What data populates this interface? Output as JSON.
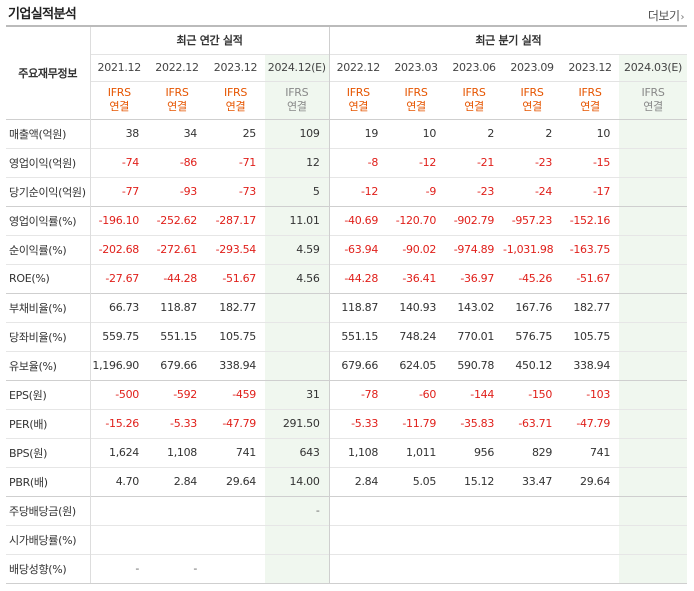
{
  "title": "기업실적분석",
  "more_label": "더보기",
  "header": {
    "row_header": "주요재무정보",
    "annual_group": "최근 연간 실적",
    "quarter_group": "최근 분기 실적",
    "periods": [
      "2021.12",
      "2022.12",
      "2023.12",
      "2024.12(E)",
      "2022.12",
      "2023.03",
      "2023.06",
      "2023.09",
      "2023.12",
      "2024.03(E)"
    ],
    "ifrs_top": "IFRS",
    "ifrs_bottom": "연결"
  },
  "rows": [
    {
      "label": "매출액(억원)",
      "values": [
        "38",
        "34",
        "25",
        "109",
        "19",
        "10",
        "2",
        "2",
        "10",
        ""
      ]
    },
    {
      "label": "영업이익(억원)",
      "values": [
        "-74",
        "-86",
        "-71",
        "12",
        "-8",
        "-12",
        "-21",
        "-23",
        "-15",
        ""
      ]
    },
    {
      "label": "당기순이익(억원)",
      "values": [
        "-77",
        "-93",
        "-73",
        "5",
        "-12",
        "-9",
        "-23",
        "-24",
        "-17",
        ""
      ]
    },
    {
      "label": "영업이익률(%)",
      "values": [
        "-196.10",
        "-252.62",
        "-287.17",
        "11.01",
        "-40.69",
        "-120.70",
        "-902.79",
        "-957.23",
        "-152.16",
        ""
      ]
    },
    {
      "label": "순이익률(%)",
      "values": [
        "-202.68",
        "-272.61",
        "-293.54",
        "4.59",
        "-63.94",
        "-90.02",
        "-974.89",
        "-1,031.98",
        "-163.75",
        ""
      ]
    },
    {
      "label": "ROE(%)",
      "values": [
        "-27.67",
        "-44.28",
        "-51.67",
        "4.56",
        "-44.28",
        "-36.41",
        "-36.97",
        "-45.26",
        "-51.67",
        ""
      ]
    },
    {
      "label": "부채비율(%)",
      "values": [
        "66.73",
        "118.87",
        "182.77",
        "",
        "118.87",
        "140.93",
        "143.02",
        "167.76",
        "182.77",
        ""
      ]
    },
    {
      "label": "당좌비율(%)",
      "values": [
        "559.75",
        "551.15",
        "105.75",
        "",
        "551.15",
        "748.24",
        "770.01",
        "576.75",
        "105.75",
        ""
      ]
    },
    {
      "label": "유보율(%)",
      "values": [
        "1,196.90",
        "679.66",
        "338.94",
        "",
        "679.66",
        "624.05",
        "590.78",
        "450.12",
        "338.94",
        ""
      ]
    },
    {
      "label": "EPS(원)",
      "values": [
        "-500",
        "-592",
        "-459",
        "31",
        "-78",
        "-60",
        "-144",
        "-150",
        "-103",
        ""
      ]
    },
    {
      "label": "PER(배)",
      "values": [
        "-15.26",
        "-5.33",
        "-47.79",
        "291.50",
        "-5.33",
        "-11.79",
        "-35.83",
        "-63.71",
        "-47.79",
        ""
      ]
    },
    {
      "label": "BPS(원)",
      "values": [
        "1,624",
        "1,108",
        "741",
        "643",
        "1,108",
        "1,011",
        "956",
        "829",
        "741",
        ""
      ]
    },
    {
      "label": "PBR(배)",
      "values": [
        "4.70",
        "2.84",
        "29.64",
        "14.00",
        "2.84",
        "5.05",
        "15.12",
        "33.47",
        "29.64",
        ""
      ]
    },
    {
      "label": "주당배당금(원)",
      "values": [
        "",
        "",
        "",
        "-",
        "",
        "",
        "",
        "",
        "",
        ""
      ]
    },
    {
      "label": "시가배당률(%)",
      "values": [
        "",
        "",
        "",
        "",
        "",
        "",
        "",
        "",
        "",
        ""
      ]
    },
    {
      "label": "배당성향(%)",
      "values": [
        "-",
        "-",
        "",
        "",
        "",
        "",
        "",
        "",
        "",
        ""
      ]
    }
  ],
  "colors": {
    "negative": "#e0201b",
    "ifrs": "#e65500",
    "estimate_bg": "#f0f7ef"
  }
}
